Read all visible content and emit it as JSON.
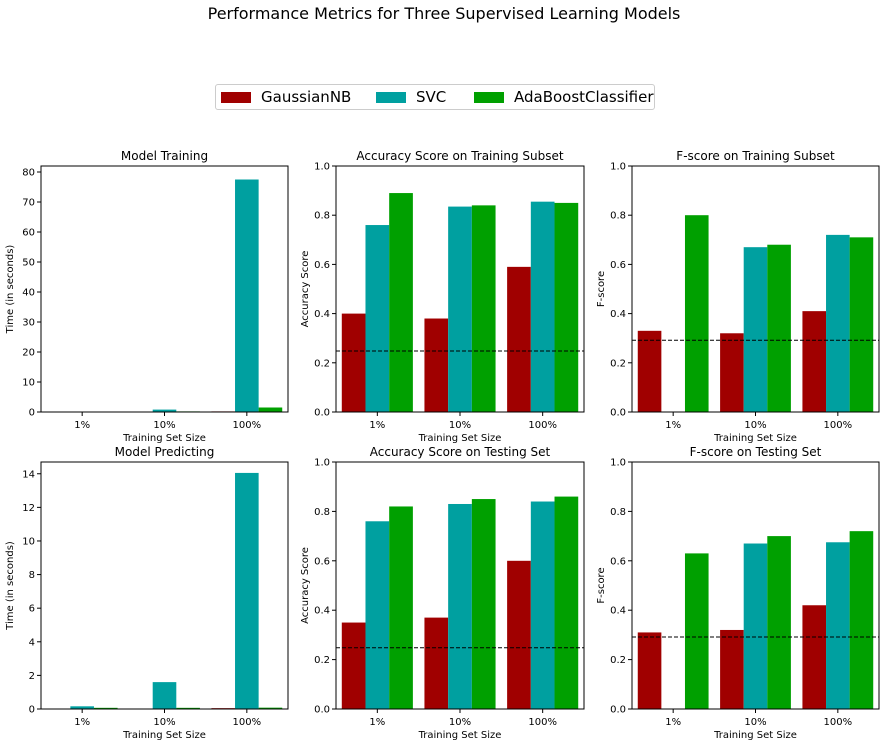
{
  "figure_title": "Performance Metrics for Three Supervised Learning Models",
  "legend": [
    {
      "name": "GaussianNB",
      "color": "#a00000"
    },
    {
      "name": "SVC",
      "color": "#00a0a0"
    },
    {
      "name": "AdaBoostClassifier",
      "color": "#00a000"
    }
  ],
  "chart_data": [
    {
      "type": "bar",
      "title": "Model Training",
      "xlabel": "Training Set Size",
      "ylabel": "Time (in seconds)",
      "categories": [
        "1%",
        "10%",
        "100%"
      ],
      "ylim": [
        0,
        82
      ],
      "yticks": [
        0,
        10,
        20,
        30,
        40,
        50,
        60,
        70,
        80
      ],
      "ytick_labels": [
        "0",
        "10",
        "20",
        "30",
        "40",
        "50",
        "60",
        "70",
        "80"
      ],
      "series": [
        {
          "name": "GaussianNB",
          "values": [
            0.0,
            0.02,
            0.2
          ]
        },
        {
          "name": "SVC",
          "values": [
            0.02,
            0.8,
            77.5
          ]
        },
        {
          "name": "AdaBoostClassifier",
          "values": [
            0.06,
            0.2,
            1.5
          ]
        }
      ]
    },
    {
      "type": "bar",
      "title": "Accuracy Score on Training Subset",
      "xlabel": "Training Set Size",
      "ylabel": "Accuracy Score",
      "categories": [
        "1%",
        "10%",
        "100%"
      ],
      "ylim": [
        0,
        1
      ],
      "yticks": [
        0,
        0.2,
        0.4,
        0.6,
        0.8,
        1.0
      ],
      "ytick_labels": [
        "0.0",
        "0.2",
        "0.4",
        "0.6",
        "0.8",
        "1.0"
      ],
      "baseline": 0.2478,
      "series": [
        {
          "name": "GaussianNB",
          "values": [
            0.4,
            0.38,
            0.59
          ]
        },
        {
          "name": "SVC",
          "values": [
            0.76,
            0.835,
            0.855
          ]
        },
        {
          "name": "AdaBoostClassifier",
          "values": [
            0.89,
            0.84,
            0.85
          ]
        }
      ]
    },
    {
      "type": "bar",
      "title": "F-score on Training Subset",
      "xlabel": "Training Set Size",
      "ylabel": "F-score",
      "categories": [
        "1%",
        "10%",
        "100%"
      ],
      "ylim": [
        0,
        1
      ],
      "yticks": [
        0,
        0.2,
        0.4,
        0.6,
        0.8,
        1.0
      ],
      "ytick_labels": [
        "0.0",
        "0.2",
        "0.4",
        "0.6",
        "0.8",
        "1.0"
      ],
      "baseline": 0.2917,
      "series": [
        {
          "name": "GaussianNB",
          "values": [
            0.33,
            0.32,
            0.41
          ]
        },
        {
          "name": "SVC",
          "values": [
            0.0,
            0.67,
            0.72
          ]
        },
        {
          "name": "AdaBoostClassifier",
          "values": [
            0.8,
            0.68,
            0.71
          ]
        }
      ]
    },
    {
      "type": "bar",
      "title": "Model Predicting",
      "xlabel": "Training Set Size",
      "ylabel": "Time (in seconds)",
      "categories": [
        "1%",
        "10%",
        "100%"
      ],
      "ylim": [
        0,
        14.7
      ],
      "yticks": [
        0,
        2,
        4,
        6,
        8,
        10,
        12,
        14
      ],
      "ytick_labels": [
        "0",
        "2",
        "4",
        "6",
        "8",
        "10",
        "12",
        "14"
      ],
      "series": [
        {
          "name": "GaussianNB",
          "values": [
            0.03,
            0.03,
            0.05
          ]
        },
        {
          "name": "SVC",
          "values": [
            0.16,
            1.6,
            14.05
          ]
        },
        {
          "name": "AdaBoostClassifier",
          "values": [
            0.07,
            0.07,
            0.08
          ]
        }
      ]
    },
    {
      "type": "bar",
      "title": "Accuracy Score on Testing Set",
      "xlabel": "Training Set Size",
      "ylabel": "Accuracy Score",
      "categories": [
        "1%",
        "10%",
        "100%"
      ],
      "ylim": [
        0,
        1
      ],
      "yticks": [
        0,
        0.2,
        0.4,
        0.6,
        0.8,
        1.0
      ],
      "ytick_labels": [
        "0.0",
        "0.2",
        "0.4",
        "0.6",
        "0.8",
        "1.0"
      ],
      "baseline": 0.2478,
      "series": [
        {
          "name": "GaussianNB",
          "values": [
            0.35,
            0.37,
            0.6
          ]
        },
        {
          "name": "SVC",
          "values": [
            0.76,
            0.83,
            0.84
          ]
        },
        {
          "name": "AdaBoostClassifier",
          "values": [
            0.82,
            0.85,
            0.86
          ]
        }
      ]
    },
    {
      "type": "bar",
      "title": "F-score on Testing Set",
      "xlabel": "Training Set Size",
      "ylabel": "F-score",
      "categories": [
        "1%",
        "10%",
        "100%"
      ],
      "ylim": [
        0,
        1
      ],
      "yticks": [
        0,
        0.2,
        0.4,
        0.6,
        0.8,
        1.0
      ],
      "ytick_labels": [
        "0.0",
        "0.2",
        "0.4",
        "0.6",
        "0.8",
        "1.0"
      ],
      "baseline": 0.2917,
      "series": [
        {
          "name": "GaussianNB",
          "values": [
            0.31,
            0.32,
            0.42
          ]
        },
        {
          "name": "SVC",
          "values": [
            0.0,
            0.67,
            0.675
          ]
        },
        {
          "name": "AdaBoostClassifier",
          "values": [
            0.63,
            0.7,
            0.72
          ]
        }
      ]
    }
  ]
}
